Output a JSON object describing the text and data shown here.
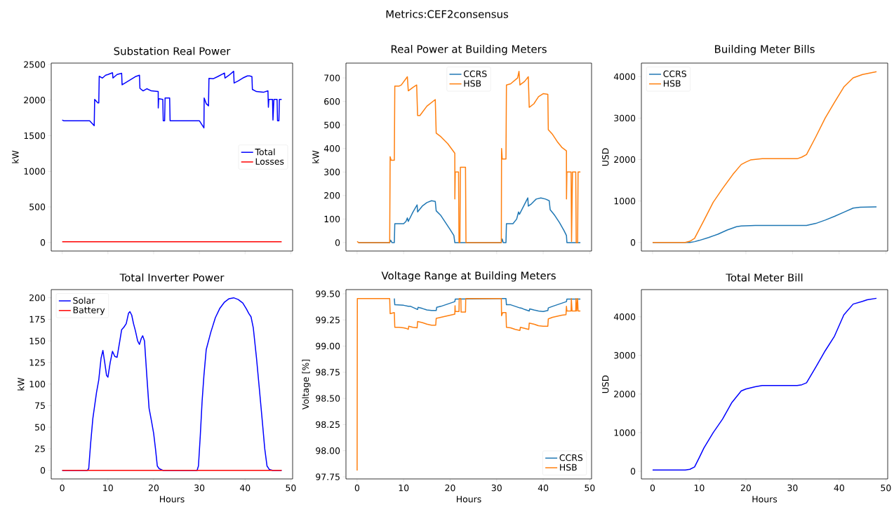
{
  "chart_data": [
    {
      "type": "line",
      "title": "Substation Real Power",
      "ylabel": "kW",
      "annotations": [
        "Metrics:CEF2consensus"
      ],
      "xlim": [
        -2.4,
        50.4
      ],
      "xticks": [
        0,
        10,
        20,
        30,
        40,
        50
      ],
      "ylim": [
        -120,
        2520
      ],
      "yticks": [
        0,
        500,
        1000,
        1500,
        2000,
        2500
      ],
      "tick_labels": "y",
      "legend": "right",
      "series": [
        {
          "name": "Total",
          "color": "#0000ff",
          "x": [
            0,
            0.3,
            6,
            7,
            7.1,
            7.8,
            8,
            8.1,
            8.8,
            9.5,
            10,
            11,
            11.1,
            12,
            13,
            13.1,
            14,
            15,
            16,
            16.9,
            17,
            17.7,
            18.5,
            19.5,
            21,
            21.01,
            21.1,
            22,
            22.1,
            22.4,
            22.5,
            23.5,
            23.6,
            30,
            31,
            31.05,
            31.5,
            32,
            32.1,
            33,
            34,
            35.5,
            35.6,
            36.5,
            37.5,
            37.6,
            38.5,
            39.5,
            40.5,
            41,
            41.5,
            41.6,
            42.5,
            44,
            45,
            45.1,
            45.2,
            46,
            46.1,
            46.3,
            47,
            47.1,
            47.4,
            47.5,
            48
          ],
          "values": [
            1720,
            1710,
            1710,
            1640,
            2010,
            1960,
            1960,
            2335,
            2310,
            2350,
            2360,
            2385,
            2310,
            2360,
            2377,
            2215,
            2250,
            2290,
            2330,
            2350,
            2165,
            2130,
            2160,
            2130,
            2120,
            1890,
            2020,
            2010,
            1710,
            1710,
            2030,
            2030,
            1710,
            1710,
            1610,
            2030,
            1950,
            1920,
            2305,
            2300,
            2330,
            2380,
            2310,
            2350,
            2405,
            2240,
            2270,
            2310,
            2340,
            2340,
            2330,
            2150,
            2120,
            2110,
            2130,
            1900,
            2010,
            2010,
            1720,
            2010,
            2010,
            1710,
            1710,
            2010,
            2010
          ]
        },
        {
          "name": "Losses",
          "color": "#ff0000",
          "x": [
            0,
            24,
            48
          ],
          "values": [
            10,
            10,
            10
          ]
        }
      ]
    },
    {
      "type": "line",
      "title": "Real Power at Building Meters",
      "ylabel": "kW",
      "xlim": [
        -2.4,
        50.4
      ],
      "xticks": [
        0,
        10,
        20,
        30,
        40,
        50
      ],
      "ylim": [
        -36,
        763
      ],
      "yticks": [
        0,
        100,
        200,
        300,
        400,
        500,
        600,
        700
      ],
      "tick_labels": "y",
      "legend": "top",
      "series": [
        {
          "name": "CCRS",
          "color": "#1f77b4",
          "x": [
            0.3,
            7,
            7.2,
            7.5,
            8,
            8.1,
            10,
            10.5,
            10.8,
            11,
            12,
            12.9,
            13,
            14,
            15,
            16,
            16.8,
            17,
            18,
            19,
            20,
            20.8,
            21,
            31,
            31.2,
            31.4,
            32,
            32.1,
            33.5,
            34.3,
            34.7,
            34.9,
            36.7,
            36.8,
            37.5,
            38.5,
            39.5,
            40.5,
            41.3,
            41.5,
            42.5,
            43.5,
            44.5,
            45,
            45.1,
            48
          ],
          "values": [
            0,
            0,
            10,
            0,
            0,
            80,
            80,
            90,
            105,
            90,
            130,
            160,
            130,
            155,
            170,
            178,
            175,
            135,
            115,
            85,
            55,
            30,
            0,
            0,
            15,
            0,
            0,
            80,
            80,
            100,
            130,
            120,
            190,
            155,
            165,
            185,
            190,
            185,
            178,
            140,
            115,
            85,
            50,
            30,
            0,
            0
          ]
        },
        {
          "name": "HSB",
          "color": "#ff7f0e",
          "x": [
            0,
            0.3,
            7,
            7.1,
            7.3,
            8,
            8.1,
            9,
            9.5,
            10.8,
            11,
            12,
            12.8,
            13,
            13.5,
            15,
            16.8,
            17,
            18,
            19.5,
            21,
            21.01,
            21.1,
            21.8,
            21.9,
            22.1,
            22.2,
            23.3,
            23.4,
            31,
            31.05,
            31.2,
            32,
            32.1,
            33,
            34.5,
            34.8,
            35,
            36,
            36.8,
            37,
            38,
            39,
            40,
            41,
            41.1,
            42,
            43,
            44,
            45,
            45.01,
            45.1,
            46,
            46.1,
            46.3,
            47,
            47.1,
            47.4,
            47.5,
            48
          ],
          "values": [
            5,
            0,
            0,
            365,
            350,
            350,
            665,
            665,
            670,
            705,
            645,
            660,
            670,
            540,
            540,
            580,
            608,
            465,
            450,
            420,
            380,
            185,
            300,
            300,
            0,
            0,
            320,
            320,
            0,
            0,
            400,
            355,
            355,
            670,
            675,
            700,
            728,
            670,
            685,
            705,
            575,
            590,
            620,
            633,
            630,
            480,
            460,
            430,
            405,
            390,
            185,
            300,
            300,
            5,
            300,
            300,
            0,
            0,
            300,
            300
          ]
        }
      ]
    },
    {
      "type": "line",
      "title": "Building Meter Bills",
      "ylabel": "USD",
      "xlim": [
        -2.4,
        50.4
      ],
      "xticks": [
        0,
        10,
        20,
        30,
        40,
        50
      ],
      "ylim": [
        -206,
        4326
      ],
      "yticks": [
        0,
        1000,
        2000,
        3000,
        4000
      ],
      "tick_labels": "y",
      "legend": "top left",
      "series": [
        {
          "name": "CCRS",
          "color": "#1f77b4",
          "x": [
            0,
            8,
            9,
            10,
            12,
            14,
            16,
            18,
            19,
            22,
            33,
            35,
            37,
            39,
            41,
            43,
            44.5,
            48
          ],
          "values": [
            0,
            0,
            20,
            50,
            120,
            200,
            300,
            380,
            400,
            410,
            410,
            460,
            540,
            630,
            730,
            830,
            850,
            860
          ]
        },
        {
          "name": "HSB",
          "color": "#ff7f0e",
          "x": [
            0,
            7,
            8,
            9,
            11,
            13,
            15,
            17.2,
            19,
            20,
            21,
            23.5,
            31,
            32,
            33,
            35,
            37,
            39,
            41,
            43,
            45,
            48
          ],
          "values": [
            0,
            0,
            30,
            100,
            530,
            970,
            1300,
            1640,
            1880,
            1940,
            1990,
            2020,
            2020,
            2060,
            2120,
            2550,
            3000,
            3380,
            3750,
            3970,
            4050,
            4120
          ]
        }
      ]
    },
    {
      "type": "line",
      "title": "Total Inverter Power",
      "xlabel": "Hours",
      "ylabel": "kW",
      "xlim": [
        -2.4,
        50.4
      ],
      "xticks": [
        0,
        10,
        20,
        30,
        40,
        50
      ],
      "ylim": [
        -10,
        209.5
      ],
      "yticks": [
        0,
        25,
        50,
        75,
        100,
        125,
        150,
        175,
        200
      ],
      "legend": "top left",
      "series": [
        {
          "name": "Solar",
          "color": "#0000ff",
          "x": [
            0,
            5.5,
            5.8,
            6.2,
            6.7,
            7.5,
            8,
            8.5,
            8.9,
            9.3,
            9.7,
            10,
            10.5,
            11,
            11.5,
            12,
            12.6,
            13,
            13.5,
            14,
            14.5,
            14.8,
            15.2,
            15.6,
            16,
            16.5,
            16.9,
            17.3,
            17.6,
            18,
            18.5,
            19,
            19.5,
            20,
            20.4,
            20.8,
            21.2,
            22,
            29.5,
            29.8,
            30.2,
            30.6,
            31,
            31.5,
            32.5,
            33.5,
            34.5,
            35.5,
            36.5,
            37.5,
            38.5,
            39.5,
            40.3,
            40.8,
            41.3,
            41.8,
            42.5,
            43.2,
            43.8,
            44.3,
            44.8,
            45.3,
            46,
            48
          ],
          "values": [
            0,
            0,
            2,
            30,
            60,
            90,
            105,
            130,
            139,
            125,
            110,
            108,
            125,
            138,
            132,
            131,
            150,
            163,
            166,
            170,
            182,
            184,
            180,
            170,
            162,
            150,
            146,
            153,
            156,
            150,
            110,
            72,
            58,
            43,
            25,
            5,
            2,
            0,
            0,
            5,
            40,
            80,
            110,
            140,
            160,
            177,
            188,
            195,
            199,
            200,
            198,
            194,
            187,
            182,
            178,
            165,
            130,
            90,
            55,
            25,
            5,
            1,
            0,
            0
          ]
        },
        {
          "name": "Battery",
          "color": "#ff0000",
          "x": [
            0,
            24,
            48
          ],
          "values": [
            0,
            0,
            0
          ]
        }
      ]
    },
    {
      "type": "line",
      "title": "Voltage Range at Building Meters",
      "xlabel": "Hours",
      "ylabel": "Voltage [%]",
      "xlim": [
        -2.4,
        50.4
      ],
      "xticks": [
        0,
        10,
        20,
        30,
        40,
        50
      ],
      "ylim": [
        97.73,
        99.54
      ],
      "yticks": [
        {
          "value": 97.75,
          "label": "97.75"
        },
        {
          "value": 98.0,
          "label": "98.00"
        },
        {
          "value": 98.25,
          "label": "98.25"
        },
        {
          "value": 98.5,
          "label": "98.50"
        },
        {
          "value": 98.75,
          "label": "98.75"
        },
        {
          "value": 99.0,
          "label": "99.00"
        },
        {
          "value": 99.25,
          "label": "99.25"
        },
        {
          "value": 99.5,
          "label": "99.50"
        }
      ],
      "legend": "bottom right",
      "series": [
        {
          "name": "CCRS",
          "color": "#1f77b4",
          "x": [
            8,
            8.1,
            10,
            11,
            11.5,
            12,
            13,
            13.1,
            14,
            15,
            16,
            17,
            17.1,
            18,
            19,
            20,
            21,
            21.1,
            31,
            32,
            32.1,
            33,
            34,
            35,
            35.5,
            36,
            37,
            37.1,
            38,
            39,
            40,
            41,
            41.1,
            42,
            43,
            44,
            45,
            45.1,
            48
          ],
          "values": [
            99.455,
            99.395,
            99.39,
            99.38,
            99.38,
            99.37,
            99.35,
            99.37,
            99.36,
            99.345,
            99.34,
            99.34,
            99.37,
            99.38,
            99.395,
            99.41,
            99.425,
            99.45,
            99.455,
            99.455,
            99.395,
            99.395,
            99.38,
            99.365,
            99.36,
            99.35,
            99.335,
            99.355,
            99.345,
            99.335,
            99.33,
            99.34,
            99.365,
            99.38,
            99.395,
            99.41,
            99.425,
            99.45,
            99.45
          ]
        },
        {
          "name": "HSB",
          "color": "#ff7f0e",
          "x": [
            0,
            0.05,
            7,
            7.1,
            8,
            8.1,
            9,
            10,
            10.5,
            11,
            11.1,
            12,
            12.9,
            13,
            14,
            15,
            16,
            16.9,
            17,
            18,
            19,
            20,
            21,
            21.05,
            21.1,
            21.9,
            21.95,
            22.3,
            22.35,
            23.3,
            23.35,
            31,
            31.05,
            31.3,
            32,
            32.1,
            33,
            34,
            35,
            35.1,
            36,
            36.9,
            37,
            38,
            39,
            40,
            41,
            41.1,
            42,
            43,
            44,
            44.9,
            45,
            45.1,
            46,
            46.05,
            46.2,
            47,
            47.05,
            47.2,
            47.4,
            47.5,
            48
          ],
          "values": [
            97.81,
            99.455,
            99.455,
            99.31,
            99.32,
            99.18,
            99.18,
            99.175,
            99.17,
            99.16,
            99.19,
            99.18,
            99.175,
            99.235,
            99.225,
            99.21,
            99.2,
            99.2,
            99.265,
            99.275,
            99.285,
            99.295,
            99.305,
            99.385,
            99.33,
            99.33,
            99.455,
            99.455,
            99.325,
            99.325,
            99.455,
            99.455,
            99.29,
            99.32,
            99.32,
            99.18,
            99.175,
            99.16,
            99.15,
            99.18,
            99.17,
            99.16,
            99.22,
            99.21,
            99.195,
            99.19,
            99.19,
            99.26,
            99.275,
            99.285,
            99.295,
            99.3,
            99.38,
            99.335,
            99.335,
            99.455,
            99.335,
            99.335,
            99.455,
            99.335,
            99.455,
            99.335,
            99.335
          ]
        }
      ]
    },
    {
      "type": "line",
      "title": "Total Meter Bill",
      "xlabel": "Hours",
      "ylabel": "USD",
      "xlim": [
        -2.4,
        50.4
      ],
      "xticks": [
        0,
        10,
        20,
        30,
        40,
        50
      ],
      "ylim": [
        -200,
        4705
      ],
      "yticks": [
        0,
        1000,
        2000,
        3000,
        4000
      ],
      "series": [
        {
          "color": "#0000ff",
          "x": [
            0,
            7,
            8,
            9,
            10,
            11,
            13,
            15,
            17,
            19,
            20,
            22,
            23.5,
            31,
            32,
            33,
            35,
            37,
            39,
            41,
            43,
            45,
            46,
            48
          ],
          "values": [
            30,
            30,
            50,
            110,
            350,
            600,
            1000,
            1350,
            1780,
            2080,
            2130,
            2190,
            2220,
            2220,
            2240,
            2290,
            2700,
            3120,
            3500,
            4050,
            4330,
            4400,
            4440,
            4480
          ]
        }
      ]
    }
  ]
}
